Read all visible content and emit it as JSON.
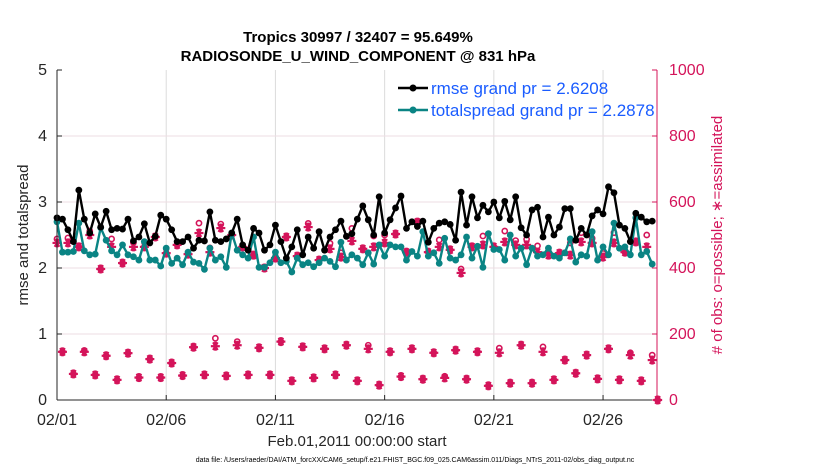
{
  "chart_data": {
    "type": "line",
    "title_line1": "Tropics 30997 / 32407 = 95.649%",
    "title_line2": "RADIOSONDE_U_WIND_COMPONENT @ 831 hPa",
    "xlabel": "Feb.01,2011 00:00:00 start",
    "ylabel_left": "rmse and totalspread",
    "ylabel_right": "# of obs: o=possible; ∗=assimilated",
    "footer": "data file: /Users/raeder/DAI/ATM_forcXX/CAM6_setup/f.e21.FHIST_BGC.f09_025.CAM6assim.011/Diags_NTrS_2011-02/obs_diag_output.nc",
    "x_unit": "days since 02/01 00Z",
    "x_step_days": 0.25,
    "xlim": [
      0,
      27.47
    ],
    "x_ticks": [
      0,
      5,
      10,
      15,
      20,
      25
    ],
    "x_tick_labels": [
      "02/01",
      "02/06",
      "02/11",
      "02/16",
      "02/21",
      "02/26"
    ],
    "ylim_left": [
      0,
      5
    ],
    "y_ticks_left": [
      "0",
      "1",
      "2",
      "3",
      "4",
      "5"
    ],
    "ylim_right": [
      0,
      1000
    ],
    "y_ticks_right": [
      "0",
      "200",
      "400",
      "600",
      "800",
      "1000"
    ],
    "grid": true,
    "legend_position": "top-right",
    "colors": {
      "rmse": "#000000",
      "spread": "#0a8484",
      "obs": "#d4145a",
      "legend_text": "#1a5cff",
      "grid": "#eedde3"
    },
    "series": [
      {
        "name": "rmse grand pr = 2.6208",
        "values": [
          2.76,
          2.74,
          2.58,
          2.4,
          3.18,
          2.74,
          2.53,
          2.82,
          2.62,
          2.86,
          2.58,
          2.6,
          2.59,
          2.74,
          2.41,
          2.47,
          2.67,
          2.38,
          2.48,
          2.8,
          2.74,
          2.58,
          2.4,
          2.4,
          2.47,
          2.3,
          2.42,
          2.41,
          2.85,
          2.42,
          2.4,
          2.44,
          2.53,
          2.74,
          2.35,
          2.27,
          2.6,
          2.53,
          2.27,
          2.35,
          2.65,
          2.4,
          2.15,
          2.32,
          2.58,
          2.2,
          2.47,
          2.3,
          2.55,
          2.27,
          2.47,
          2.58,
          2.71,
          2.48,
          2.52,
          2.74,
          2.94,
          2.73,
          2.5,
          3.08,
          2.53,
          2.73,
          2.91,
          3.09,
          2.6,
          2.7,
          2.63,
          2.71,
          2.39,
          2.6,
          2.68,
          2.7,
          2.66,
          2.42,
          3.15,
          2.65,
          3.08,
          2.76,
          2.95,
          2.85,
          3.0,
          2.76,
          3.01,
          2.73,
          3.08,
          2.61,
          2.5,
          2.88,
          2.92,
          2.47,
          2.77,
          2.5,
          2.62,
          2.9,
          2.9,
          2.42,
          2.6,
          2.5,
          2.79,
          2.88,
          2.82,
          3.23,
          3.14,
          2.65,
          2.6,
          2.4,
          2.83,
          2.77,
          2.7,
          2.71
        ]
      },
      {
        "name": "totalspread grand pr = 2.2878",
        "values": [
          2.7,
          2.24,
          2.24,
          2.25,
          2.68,
          2.26,
          2.2,
          2.21,
          2.61,
          2.42,
          2.26,
          2.2,
          2.35,
          2.2,
          2.17,
          2.12,
          2.4,
          2.12,
          2.12,
          2.03,
          2.3,
          2.07,
          2.15,
          2.05,
          2.24,
          2.09,
          2.07,
          1.98,
          2.3,
          2.12,
          2.17,
          2.01,
          2.53,
          2.27,
          2.2,
          2.15,
          2.47,
          2.01,
          2.01,
          2.08,
          2.24,
          2.08,
          2.1,
          1.94,
          2.15,
          2.05,
          2.08,
          2.02,
          2.08,
          2.15,
          2.1,
          2.02,
          2.39,
          2.12,
          2.2,
          2.15,
          2.05,
          2.23,
          2.06,
          2.35,
          2.18,
          2.35,
          2.32,
          2.32,
          2.12,
          2.25,
          2.18,
          2.55,
          2.18,
          2.23,
          2.07,
          2.45,
          2.15,
          2.12,
          2.2,
          2.47,
          2.15,
          2.33,
          2.01,
          2.52,
          2.28,
          2.28,
          2.12,
          2.5,
          2.18,
          2.3,
          2.05,
          2.3,
          2.18,
          2.2,
          2.3,
          2.18,
          2.15,
          2.23,
          2.44,
          2.09,
          2.2,
          2.18,
          2.55,
          2.12,
          2.32,
          2.2,
          2.68,
          2.3,
          2.32,
          2.2,
          2.76,
          2.2,
          2.25,
          2.06
        ]
      }
    ],
    "obs_possible": [
      488,
      146,
      491,
      79,
      464,
      150,
      512,
      76,
      397,
      134,
      488,
      61,
      415,
      142,
      477,
      68,
      464,
      124,
      494,
      68,
      445,
      112,
      470,
      74,
      442,
      160,
      536,
      76,
      461,
      187,
      533,
      73,
      500,
      177,
      464,
      76,
      439,
      158,
      400,
      76,
      430,
      177,
      494,
      58,
      436,
      161,
      535,
      67,
      424,
      155,
      475,
      76,
      446,
      166,
      520,
      58,
      458,
      166,
      497,
      45,
      500,
      146,
      503,
      71,
      448,
      155,
      539,
      63,
      448,
      143,
      485,
      72,
      455,
      151,
      397,
      63,
      464,
      146,
      497,
      43,
      464,
      157,
      512,
      51,
      483,
      166,
      487,
      51,
      467,
      161,
      450,
      61,
      445,
      121,
      476,
      81,
      507,
      136,
      490,
      64,
      444,
      155,
      507,
      61,
      448,
      143,
      479,
      58,
      500,
      136,
      0
    ],
    "obs_assimilated": [
      476,
      146,
      476,
      79,
      464,
      146,
      500,
      76,
      397,
      134,
      464,
      61,
      415,
      142,
      464,
      68,
      464,
      124,
      494,
      68,
      445,
      112,
      470,
      74,
      442,
      160,
      506,
      76,
      448,
      163,
      521,
      73,
      500,
      166,
      464,
      76,
      439,
      158,
      400,
      76,
      430,
      177,
      494,
      58,
      436,
      161,
      524,
      67,
      424,
      155,
      458,
      76,
      433,
      166,
      482,
      58,
      458,
      155,
      464,
      45,
      476,
      146,
      503,
      71,
      448,
      155,
      539,
      63,
      448,
      143,
      464,
      67,
      455,
      151,
      385,
      63,
      464,
      146,
      470,
      43,
      464,
      143,
      479,
      51,
      470,
      166,
      470,
      51,
      448,
      146,
      439,
      61,
      445,
      121,
      439,
      81,
      479,
      136,
      476,
      64,
      433,
      155,
      476,
      61,
      448,
      136,
      479,
      58,
      464,
      121,
      0
    ]
  }
}
